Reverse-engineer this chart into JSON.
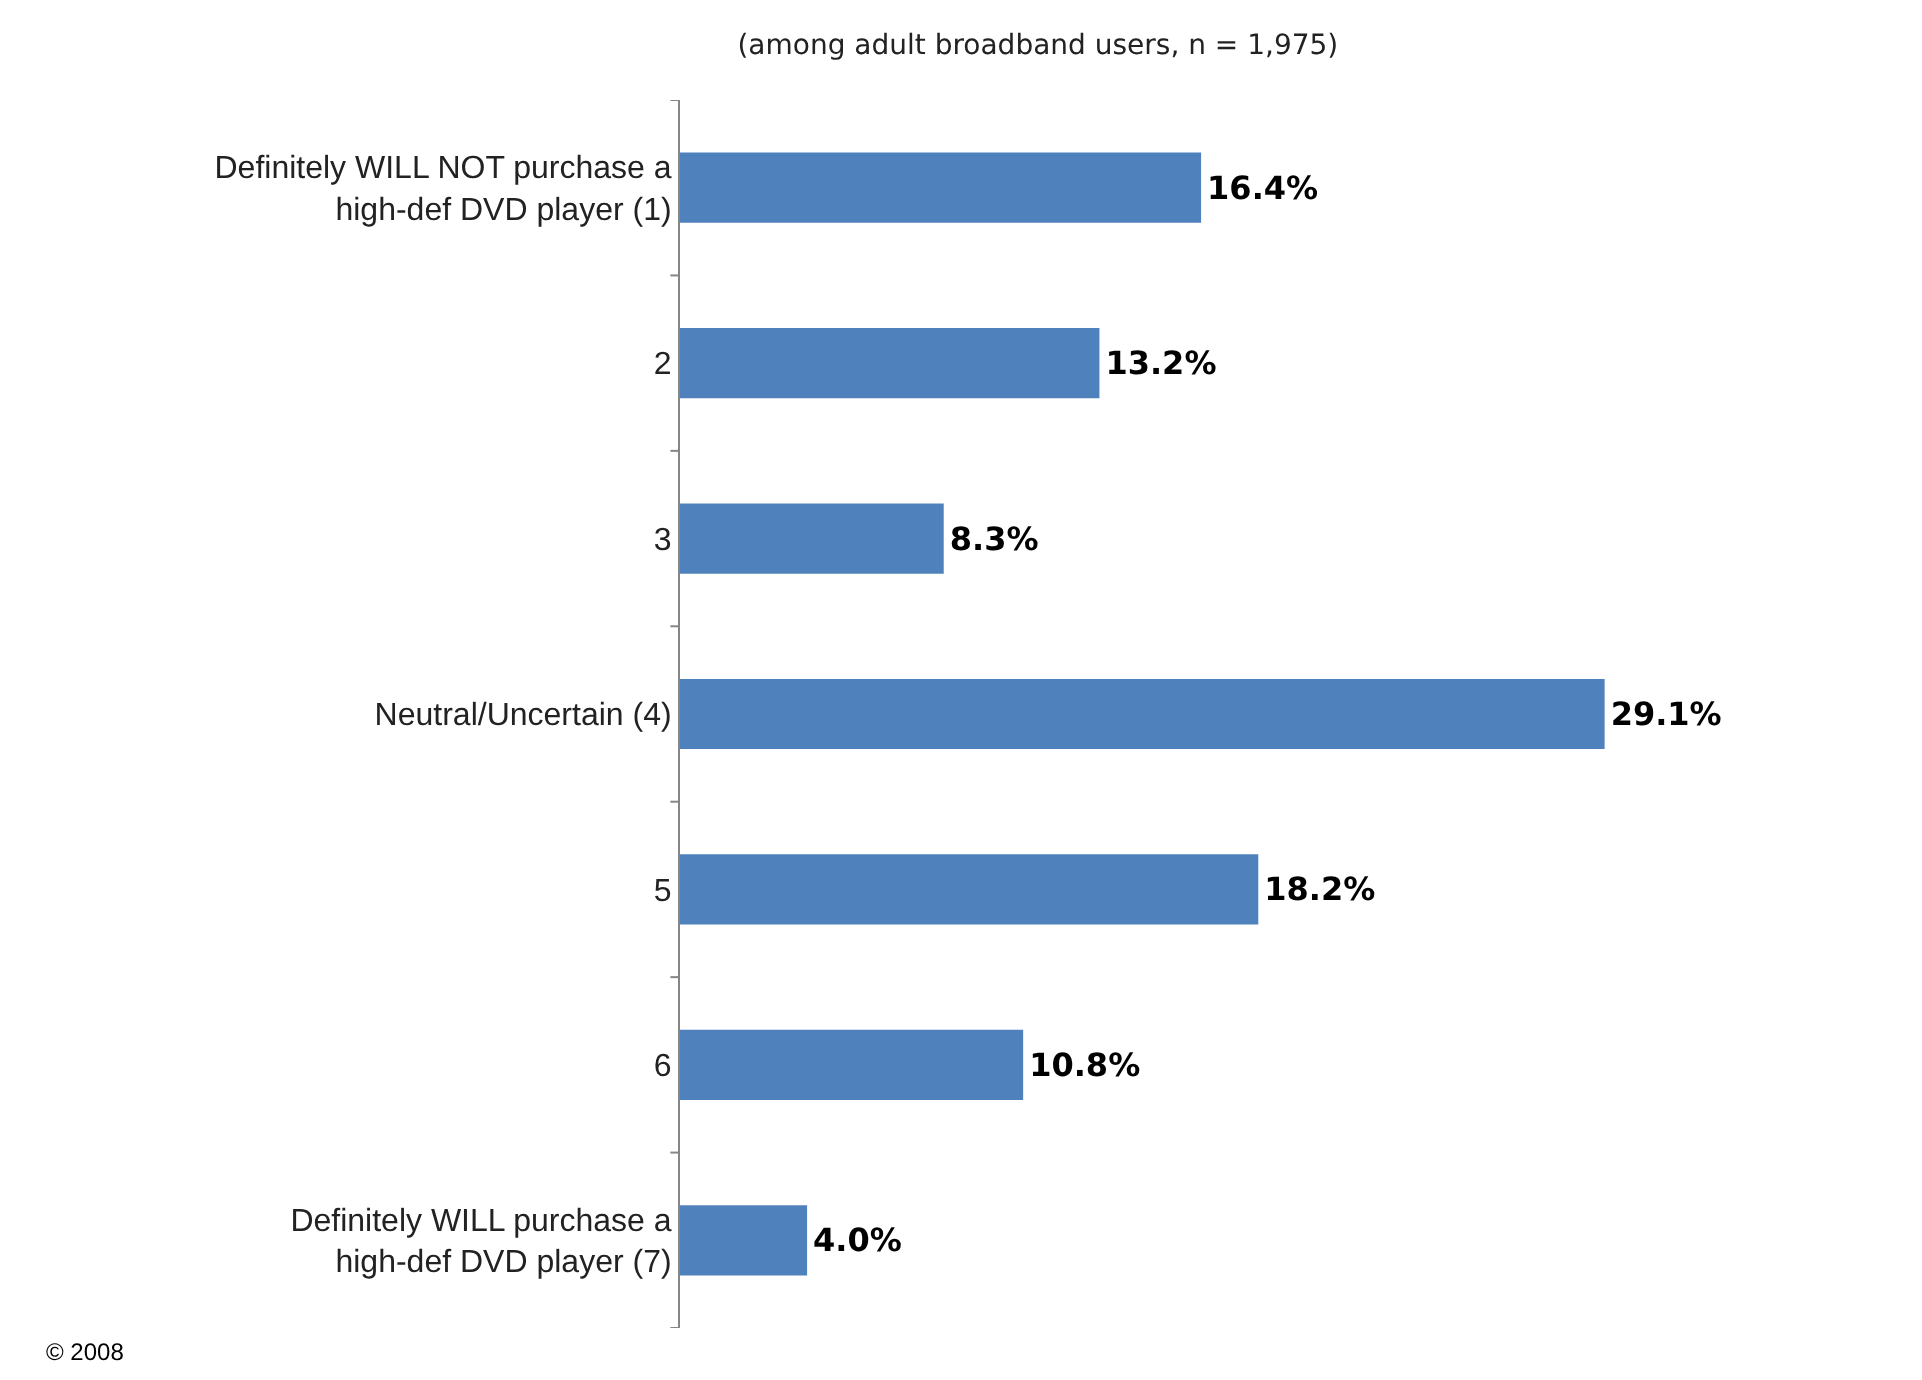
{
  "chart_data": {
    "type": "bar",
    "orientation": "horizontal",
    "title": "(among adult broadband users, n = 1,975)",
    "categories": [
      "Definitely WILL NOT purchase a high-def DVD player (1)",
      "2",
      "3",
      "Neutral/Uncertain (4)",
      "5",
      "6",
      "Definitely WILL purchase a high-def DVD player (7)"
    ],
    "values": [
      16.4,
      13.2,
      8.3,
      29.1,
      18.2,
      10.8,
      4.0
    ],
    "value_labels": [
      "16.4%",
      "13.2%",
      "8.3%",
      "29.1%",
      "18.2%",
      "10.8%",
      "4.0%"
    ],
    "color": "#4f81bd",
    "annotations": [
      "© 2008"
    ]
  }
}
